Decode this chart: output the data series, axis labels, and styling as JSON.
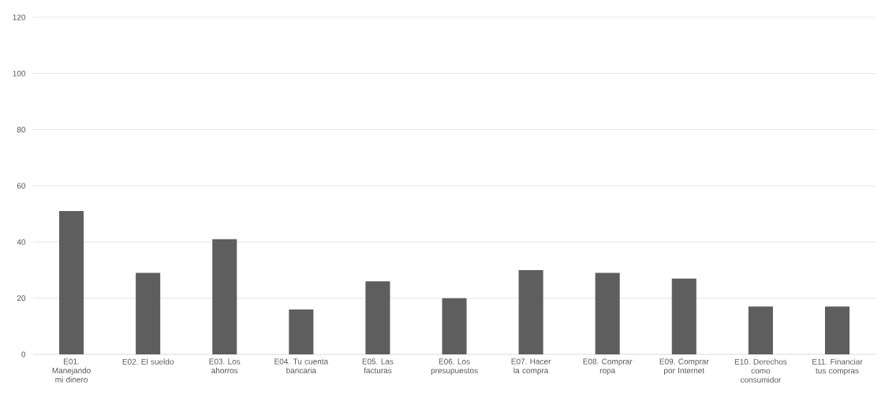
{
  "chart_data": {
    "type": "bar",
    "categories": [
      "E01. Manejando mi dinero",
      "E02. El sueldo",
      "E03. Los ahorros",
      "E04. Tu cuenta bancaria",
      "E05. Las facturas",
      "E06. Los presupuestos",
      "E07. Hacer la compra",
      "E08. Comprar ropa",
      "E09. Comprar por Internet",
      "E10. Derechos como consumidor",
      "E11. Financiar tus compras"
    ],
    "values": [
      51,
      29,
      41,
      16,
      26,
      20,
      30,
      29,
      27,
      17,
      17
    ],
    "color": "#5e5e5e",
    "ylim": [
      0,
      120
    ],
    "yticks": [
      0,
      20,
      40,
      60,
      80,
      100,
      120
    ],
    "grid": "y"
  }
}
